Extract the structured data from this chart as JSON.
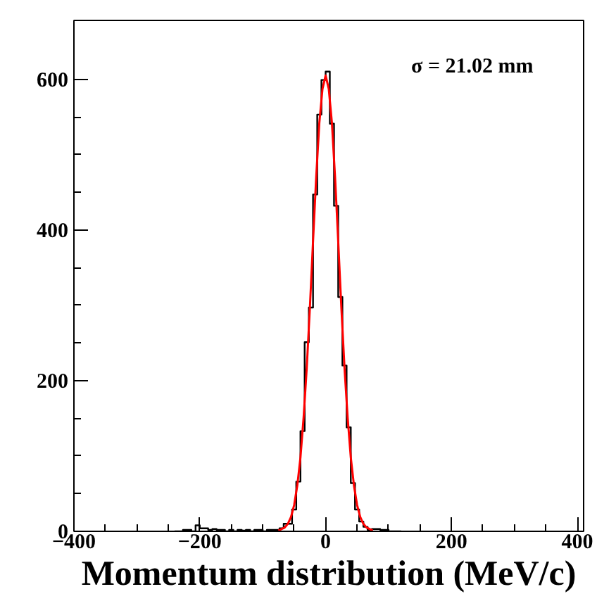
{
  "chart_data": {
    "type": "histogram",
    "xlabel": "Momentum distribution (MeV/c)",
    "annotations": [
      "σ = 21.02 mm"
    ],
    "xlim": [
      -400,
      410
    ],
    "ylim": [
      0,
      678
    ],
    "xticks": [
      -400,
      -200,
      0,
      200,
      400
    ],
    "yticks": [
      0,
      200,
      400,
      600
    ],
    "series": [
      {
        "color": "#000000",
        "bins": [
          -240,
          -233.33,
          -226.67,
          -220,
          -213.33,
          -206.67,
          -200,
          -193.33,
          -186.67,
          -180,
          -173.33,
          -166.67,
          -160,
          -153.33,
          -146.67,
          -140,
          -133.33,
          -126.67,
          -120,
          -113.33,
          -106.67,
          -100,
          -93.33,
          -86.67,
          -80,
          -73.33,
          -66.67,
          -60,
          -53.33,
          -46.67,
          -40,
          -33.33,
          -26.67,
          -20,
          -13.33,
          -6.67,
          0,
          6.67,
          13.33,
          20,
          26.67,
          33.33,
          40,
          46.67,
          53.33,
          60,
          66.67,
          73.33,
          80,
          86.67,
          93.33,
          100,
          106.67,
          113.33,
          120
        ],
        "values": [
          0,
          0,
          2,
          2,
          0,
          8,
          4,
          4,
          2,
          3,
          2,
          2,
          0,
          2,
          0,
          2,
          1,
          2,
          0,
          2,
          2,
          0,
          2,
          2,
          2,
          4,
          10,
          10,
          29,
          66,
          133,
          251,
          297,
          447,
          553,
          599,
          610,
          541,
          432,
          311,
          220,
          138,
          64,
          29,
          13,
          6,
          2,
          3,
          3,
          2,
          2,
          0,
          0,
          0
        ]
      },
      {
        "type": "line",
        "color": "#ff0000",
        "x": [
          -75,
          -65,
          -60,
          -55,
          -50,
          -45,
          -40,
          -35,
          -30,
          -25,
          -20,
          -15,
          -10,
          -5,
          0,
          5,
          10,
          15,
          20,
          25,
          30,
          35,
          40,
          45,
          50,
          55,
          60,
          65,
          75
        ],
        "values": [
          1,
          5,
          10,
          19,
          35,
          61,
          98,
          151,
          217,
          297,
          385,
          470,
          542,
          587,
          605,
          587,
          542,
          470,
          385,
          297,
          217,
          151,
          98,
          61,
          35,
          19,
          10,
          5,
          1
        ]
      }
    ]
  }
}
